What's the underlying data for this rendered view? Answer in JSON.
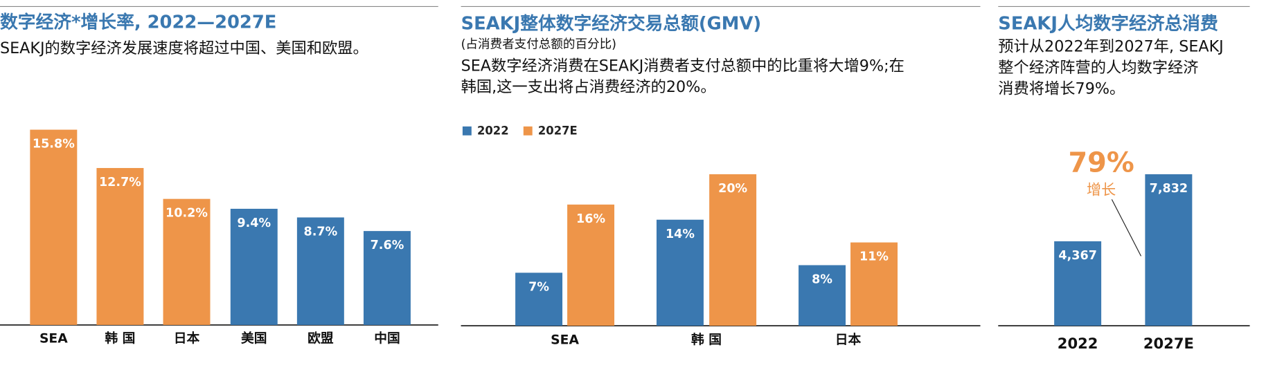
{
  "chart_data": [
    {
      "type": "bar",
      "title": "数字经济*增长率, 2022—2027E",
      "subtitle": "SEAKJ的数字经济发展速度将超过中国、美国和欧盟。",
      "categories": [
        "SEA",
        "韩 国",
        "日本",
        "美国",
        "欧盟",
        "中国"
      ],
      "values": [
        15.8,
        12.7,
        10.2,
        9.4,
        8.7,
        7.6
      ],
      "value_labels": [
        "15.8%",
        "12.7%",
        "10.2%",
        "9.4%",
        "8.7%",
        "7.6%"
      ],
      "colors": [
        "#ee9549",
        "#ee9549",
        "#ee9549",
        "#3a78b0",
        "#3a78b0",
        "#3a78b0"
      ]
    },
    {
      "type": "grouped_bar",
      "title": "SEAKJ整体数字经济交易总额(GMV)",
      "subtitle": "(占消费者支付总额的百分比)",
      "text": [
        "SEA数字经济消费在SEAKJ消费者支付总额中的比重将大增9%;在",
        "韩国,这一支出将占消费经济的20%。"
      ],
      "categories": [
        "SEA",
        "韩 国",
        "日本"
      ],
      "series": [
        {
          "name": "2022",
          "color": "#3a78b0",
          "values": [
            7,
            14,
            8
          ],
          "value_labels": [
            "7%",
            "14%",
            "8%"
          ]
        },
        {
          "name": "2027E",
          "color": "#ee9549",
          "values": [
            16,
            20,
            11
          ],
          "value_labels": [
            "16%",
            "20%",
            "11%"
          ]
        }
      ]
    },
    {
      "type": "bar",
      "title": "SEAKJ人均数字经济总消费",
      "text": [
        "预计从2022年到2027年, SEAKJ",
        "整个经济阵营的人均数字经济",
        "消费将增长79%。"
      ],
      "categories": [
        "2022",
        "2027E"
      ],
      "values": [
        4367,
        7832
      ],
      "value_labels": [
        "4,367",
        "7,832"
      ],
      "colors": [
        "#3a78b0",
        "#3a78b0"
      ],
      "annotations": [
        "79%",
        "增长"
      ]
    }
  ]
}
